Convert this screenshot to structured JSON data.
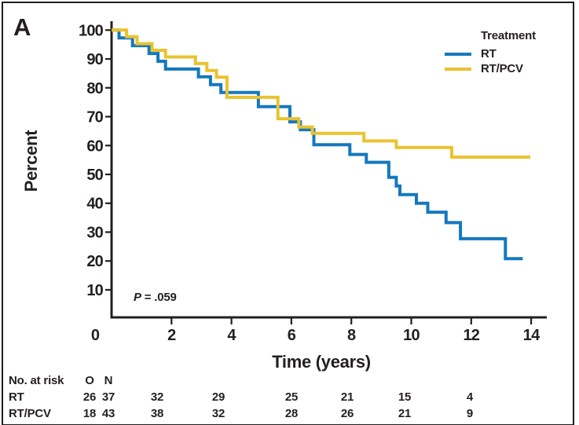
{
  "figure": {
    "panel_label": "A",
    "p_symbol": "P",
    "p_text": " = .059"
  },
  "colors": {
    "axis": "#231f20",
    "text": "#231f20",
    "background": "#ffffff",
    "rt_blue": "#1478be",
    "rtpcv_gold": "#e9c32f"
  },
  "chart_data": {
    "type": "line",
    "subtype": "kaplan-meier-step",
    "title": "",
    "xlabel": "Time (years)",
    "ylabel": "Percent",
    "xlim": [
      0,
      14.5
    ],
    "ylim": [
      0,
      100
    ],
    "grid": false,
    "x_ticks": [
      0,
      2,
      4,
      6,
      8,
      10,
      12,
      14
    ],
    "y_ticks": [
      10,
      20,
      30,
      40,
      50,
      60,
      70,
      80,
      90,
      100
    ],
    "legend_title": "Treatment",
    "legend_position": "top-right",
    "p_annotation": "P = .059",
    "series": [
      {
        "name": "RT",
        "color": "#1478be",
        "start": [
          0,
          100
        ],
        "drops": [
          [
            0.25,
            97.3
          ],
          [
            0.7,
            94.6
          ],
          [
            1.25,
            91.9
          ],
          [
            1.55,
            89.2
          ],
          [
            1.8,
            86.5
          ],
          [
            2.9,
            83.8
          ],
          [
            3.3,
            81.1
          ],
          [
            3.65,
            78.4
          ],
          [
            4.9,
            73.5
          ],
          [
            5.95,
            68.2
          ],
          [
            6.3,
            65.5
          ],
          [
            6.75,
            60.3
          ],
          [
            7.95,
            56.9
          ],
          [
            8.5,
            54.2
          ],
          [
            9.25,
            49.0
          ],
          [
            9.5,
            46.0
          ],
          [
            9.62,
            43.0
          ],
          [
            10.17,
            40.0
          ],
          [
            10.55,
            36.9
          ],
          [
            11.16,
            33.3
          ],
          [
            11.64,
            27.7
          ],
          [
            13.14,
            20.8
          ]
        ],
        "end_x": 13.72
      },
      {
        "name": "RT/PCV",
        "color": "#e9c32f",
        "start": [
          0,
          100
        ],
        "drops": [
          [
            0.5,
            97.7
          ],
          [
            0.85,
            95.3
          ],
          [
            1.35,
            93.0
          ],
          [
            1.8,
            90.7
          ],
          [
            2.8,
            88.4
          ],
          [
            3.18,
            86.0
          ],
          [
            3.5,
            83.7
          ],
          [
            3.85,
            76.7
          ],
          [
            5.55,
            69.3
          ],
          [
            6.25,
            66.4
          ],
          [
            6.7,
            64.2
          ],
          [
            8.42,
            61.6
          ],
          [
            9.5,
            59.3
          ],
          [
            11.35,
            56.0
          ]
        ],
        "end_x": 13.97
      }
    ]
  },
  "risk_table": {
    "title": "No. at risk",
    "event_col_header": "O",
    "total_col_header": "N",
    "times": [
      2,
      4,
      6,
      8,
      10,
      12
    ],
    "rows": [
      {
        "label": "RT",
        "events": "26",
        "total": "37",
        "at_risk": [
          "32",
          "29",
          "25",
          "21",
          "15",
          "4"
        ]
      },
      {
        "label": "RT/PCV",
        "events": "18",
        "total": "43",
        "at_risk": [
          "38",
          "32",
          "28",
          "26",
          "21",
          "9"
        ]
      }
    ]
  }
}
